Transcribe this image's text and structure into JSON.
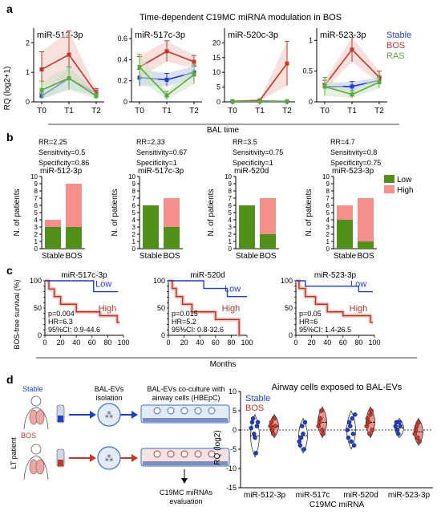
{
  "colors": {
    "stable": "#1f3fbf",
    "bos": "#c0392b",
    "ras": "#5aa83e",
    "low": "#4f8f1a",
    "high": "#f4908a",
    "km_bos": "#a83a2a",
    "bos_violin": "#e89690"
  },
  "panels": {
    "a": {
      "letter": "a",
      "title": "Time-dependent C19MC miRNA modulation in BOS",
      "ylabel": "RQ (log2+1)",
      "xlabel": "BAL time",
      "legend": [
        "Stable",
        "BOS",
        "RAS"
      ]
    },
    "b": {
      "letter": "b",
      "low_label": "Low",
      "high_label": "High"
    },
    "c": {
      "letter": "c",
      "ylabel": "BOS-free survival (%)",
      "xlabel": "Months",
      "low_label": "Low",
      "high_label": "High"
    },
    "d": {
      "letter": "d",
      "stable_label": "Stable",
      "bos_label": "BOS",
      "lt_patient": "LT patient",
      "step1": [
        "BAL-EVs",
        "isolation"
      ],
      "step2": [
        "BAL-EVs co-culture with",
        "airway cells (HBEpC)"
      ],
      "step3": [
        "C19MC miRNAs",
        "evaluation"
      ],
      "chart_title": "Airway cells exposed to BAL-EVs"
    }
  },
  "chart_data": [
    {
      "panel": "a",
      "type": "line",
      "charts": [
        {
          "title": "miR-512-3p",
          "x": [
            "T0",
            "T1",
            "T2"
          ],
          "ylim": [
            0,
            2.5
          ],
          "yticks": [
            0,
            1,
            2
          ],
          "series": [
            {
              "name": "Stable",
              "values": [
                0.2,
                0.8,
                0.3
              ],
              "err": [
                0.1,
                0.35,
                0.1
              ]
            },
            {
              "name": "BOS",
              "values": [
                1.1,
                1.6,
                0.3
              ],
              "err": [
                0.6,
                0.8,
                0.15
              ]
            },
            {
              "name": "RAS",
              "values": [
                0.4,
                0.8,
                0.2
              ],
              "err": [
                0.3,
                0.4,
                0.1
              ]
            }
          ]
        },
        {
          "title": "miR-517c-3p",
          "x": [
            "T0",
            "T1",
            "T2"
          ],
          "ylim": [
            0,
            0.7
          ],
          "yticks": [
            0.0,
            0.2,
            0.4,
            0.6
          ],
          "series": [
            {
              "name": "Stable",
              "values": [
                0.23,
                0.21,
                0.28
              ],
              "err": [
                0.08,
                0.06,
                0.06
              ]
            },
            {
              "name": "BOS",
              "values": [
                0.33,
                0.48,
                0.38
              ],
              "err": [
                0.1,
                0.1,
                0.06
              ]
            },
            {
              "name": "RAS",
              "values": [
                0.33,
                0.06,
                0.26
              ],
              "err": [
                0.12,
                0.04,
                0.09
              ]
            }
          ]
        },
        {
          "title": "miR-520c-3p",
          "x": [
            "T0",
            "T1",
            "T2"
          ],
          "ylim": [
            0,
            25
          ],
          "yticks": [
            0,
            5,
            10,
            15,
            20
          ],
          "series": [
            {
              "name": "Stable",
              "values": [
                0.2,
                0.3,
                0.2
              ],
              "err": [
                0.1,
                0.1,
                0.1
              ]
            },
            {
              "name": "BOS",
              "values": [
                0.2,
                0.5,
                13
              ],
              "err": [
                0.1,
                0.3,
                7.5
              ]
            },
            {
              "name": "RAS",
              "values": [
                0.2,
                0.2,
                0.2
              ],
              "err": [
                0.1,
                0.1,
                0.1
              ]
            }
          ]
        },
        {
          "title": "miR-523-3p",
          "x": [
            "T0",
            "T1",
            "T2"
          ],
          "ylim": [
            0,
            1.2
          ],
          "yticks": [
            0.0,
            0.5,
            1.0
          ],
          "series": [
            {
              "name": "Stable",
              "values": [
                0.25,
                0.25,
                0.35
              ],
              "err": [
                0.05,
                0.08,
                0.05
              ]
            },
            {
              "name": "BOS",
              "values": [
                0.27,
                0.85,
                0.4
              ],
              "err": [
                0.08,
                0.2,
                0.1
              ]
            },
            {
              "name": "RAS",
              "values": [
                0.25,
                0.12,
                0.32
              ],
              "err": [
                0.15,
                0.06,
                0.1
              ]
            }
          ]
        }
      ]
    },
    {
      "panel": "b",
      "type": "bar",
      "ylabel": "N. of patients",
      "categories": [
        "Stable",
        "BOS"
      ],
      "ylim": [
        0,
        10
      ],
      "yticks": [
        0,
        1,
        2,
        3,
        4,
        5,
        6,
        7,
        8,
        9,
        10
      ],
      "charts": [
        {
          "title": "miR-512-3p",
          "stats": [
            "RR=2.25",
            "Sensitivity=0.5",
            "Specificity=0.86"
          ],
          "series": [
            {
              "name": "Low",
              "values": [
                3,
                3
              ]
            },
            {
              "name": "High",
              "values": [
                1,
                6
              ]
            }
          ]
        },
        {
          "title": "miR-517c-3p",
          "stats": [
            "RR=2.33",
            "Sensitivity=0.67",
            "Specificity=1"
          ],
          "series": [
            {
              "name": "Low",
              "values": [
                6,
                3
              ]
            },
            {
              "name": "High",
              "values": [
                0,
                4
              ]
            }
          ]
        },
        {
          "title": "miR-520d",
          "stats": [
            "RR=3.5",
            "Sensitivity=0.75",
            "Specificity=1"
          ],
          "series": [
            {
              "name": "Low",
              "values": [
                6,
                2
              ]
            },
            {
              "name": "High",
              "values": [
                0,
                5
              ]
            }
          ]
        },
        {
          "title": "miR-523-3p",
          "stats": [
            "RR=4.7",
            "Sensitivity=0.8",
            "Specificity=0.75"
          ],
          "series": [
            {
              "name": "Low",
              "values": [
                4,
                1
              ]
            },
            {
              "name": "High",
              "values": [
                2,
                6
              ]
            }
          ]
        }
      ]
    },
    {
      "panel": "c",
      "type": "line",
      "xlim": [
        0,
        100
      ],
      "xticks": [
        0,
        20,
        40,
        60,
        80,
        100
      ],
      "ylim": [
        0,
        100
      ],
      "yticks": [
        0,
        10,
        20,
        30,
        40,
        50,
        60,
        70,
        80,
        90,
        100
      ],
      "charts": [
        {
          "title": "miR-517c-3p",
          "stats": [
            "p=0.004",
            "HR=6.3",
            "95%CI: 0.9-44.6"
          ],
          "low": [
            [
              0,
              100
            ],
            [
              62,
              100
            ],
            [
              62,
              80
            ],
            [
              93,
              80
            ]
          ],
          "high": [
            [
              0,
              100
            ],
            [
              5,
              100
            ],
            [
              5,
              85
            ],
            [
              12,
              85
            ],
            [
              12,
              71
            ],
            [
              20,
              71
            ],
            [
              20,
              57
            ],
            [
              40,
              57
            ],
            [
              40,
              43
            ],
            [
              70,
              43
            ],
            [
              70,
              36
            ],
            [
              92,
              36
            ],
            [
              92,
              24
            ],
            [
              95,
              24
            ]
          ]
        },
        {
          "title": "miR-520d",
          "stats": [
            "p=0.015",
            "HR=5.2",
            "95%CI: 0.8-32.6"
          ],
          "low": [
            [
              0,
              100
            ],
            [
              45,
              100
            ],
            [
              45,
              86
            ],
            [
              75,
              86
            ],
            [
              75,
              71
            ],
            [
              100,
              71
            ]
          ],
          "high": [
            [
              0,
              100
            ],
            [
              5,
              100
            ],
            [
              5,
              86
            ],
            [
              10,
              86
            ],
            [
              10,
              71
            ],
            [
              18,
              71
            ],
            [
              18,
              57
            ],
            [
              30,
              57
            ],
            [
              30,
              43
            ],
            [
              60,
              43
            ],
            [
              60,
              29
            ],
            [
              90,
              29
            ],
            [
              90,
              0
            ],
            [
              92,
              0
            ]
          ]
        },
        {
          "title": "miR-523-3p",
          "stats": [
            "p=0.05",
            "HR=6",
            "95%CI: 1.4-26.5"
          ],
          "low": [
            [
              0,
              100
            ],
            [
              12,
              100
            ],
            [
              12,
              90
            ],
            [
              80,
              90
            ],
            [
              80,
              80
            ],
            [
              98,
              80
            ]
          ],
          "high": [
            [
              0,
              100
            ],
            [
              4,
              100
            ],
            [
              4,
              86
            ],
            [
              12,
              86
            ],
            [
              12,
              71
            ],
            [
              25,
              71
            ],
            [
              25,
              57
            ],
            [
              40,
              57
            ],
            [
              40,
              43
            ],
            [
              60,
              43
            ],
            [
              60,
              36
            ],
            [
              95,
              36
            ],
            [
              95,
              24
            ],
            [
              98,
              24
            ]
          ]
        }
      ]
    },
    {
      "panel": "d",
      "type": "scatter",
      "title": "Airway cells exposed to BAL-EVs",
      "ylabel": "RQ (log2)",
      "xlabel": "C19MC miRNA",
      "categories": [
        "miR-512-3p",
        "miR-517c",
        "miR-520d",
        "miR-523-3p"
      ],
      "ylim": [
        -15,
        10
      ],
      "yticks": [
        -15,
        -10,
        -5,
        0,
        5,
        10
      ],
      "series": [
        {
          "name": "Stable",
          "values": [
            [
              0.5,
              2,
              3,
              -1,
              -2,
              -6,
              1,
              2
            ],
            [
              -3,
              -4,
              -2,
              1,
              -1,
              -5,
              2
            ],
            [
              0,
              -2,
              2,
              1,
              -3,
              3,
              -1,
              -4,
              4
            ],
            [
              1,
              2,
              0,
              -1,
              2,
              1
            ]
          ]
        },
        {
          "name": "BOS",
          "values": [
            [
              1,
              2,
              0,
              -1,
              3,
              1
            ],
            [
              1,
              2,
              3,
              5,
              0,
              -1
            ],
            [
              1,
              3,
              2,
              -1,
              4,
              5,
              0
            ],
            [
              -1,
              0,
              1,
              -2,
              2,
              -3
            ]
          ]
        }
      ]
    }
  ]
}
